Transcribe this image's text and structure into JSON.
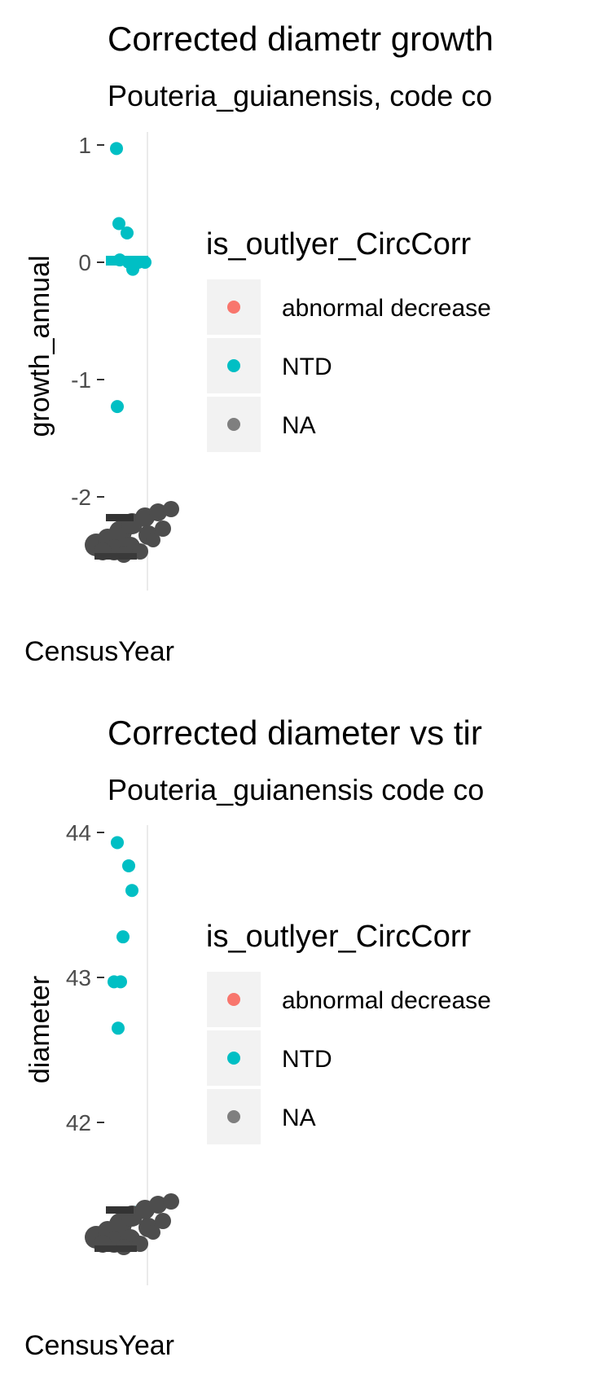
{
  "colors": {
    "abnormal_decrease": "#F8766D",
    "ntd": "#00BFC4",
    "na": "#7F7F7F",
    "tick_label": "#4D4D4D",
    "tick_mark": "#333333",
    "grid": "#EBEBEB",
    "legend_key_bg": "#F2F2F2",
    "smudge": "#4D4D4D"
  },
  "chart_data": [
    {
      "type": "scatter",
      "title": "Corrected diametr growth",
      "subtitle": "Pouteria_guianensis, code co",
      "xlabel": "CensusYear",
      "ylabel": "growth_annual",
      "yticks": [
        1,
        0,
        -1,
        -2
      ],
      "ylim": [
        -2.6,
        1.1
      ],
      "legend": {
        "title": "is_outlyer_CircCorr",
        "entries": [
          "abnormal decrease",
          "NTD",
          "NA"
        ],
        "placement": "right"
      },
      "points": [
        {
          "y": 0.97,
          "group": "NTD"
        },
        {
          "y": 0.33,
          "group": "NTD"
        },
        {
          "y": 0.25,
          "group": "NTD"
        },
        {
          "y": 0.02,
          "group": "NTD"
        },
        {
          "y": 0.0,
          "group": "NTD"
        },
        {
          "y": 0.0,
          "group": "NTD"
        },
        {
          "y": 0.0,
          "group": "NTD"
        },
        {
          "y": -0.06,
          "group": "NTD"
        },
        {
          "y": -1.23,
          "group": "NTD"
        },
        {
          "y": -2.22,
          "group": "abnormal decrease"
        }
      ]
    },
    {
      "type": "scatter",
      "title": "Corrected diameter vs tir",
      "subtitle": "Pouteria_guianensis code co",
      "xlabel": "CensusYear",
      "ylabel": "diameter",
      "yticks": [
        44,
        43,
        42
      ],
      "ylim": [
        41.1,
        44.05
      ],
      "legend": {
        "title": "is_outlyer_CircCorr",
        "entries": [
          "abnormal decrease",
          "NTD",
          "NA"
        ],
        "placement": "right"
      },
      "points": [
        {
          "y": 43.93,
          "group": "NTD"
        },
        {
          "y": 43.77,
          "group": "NTD"
        },
        {
          "y": 43.6,
          "group": "NTD"
        },
        {
          "y": 43.28,
          "group": "NTD"
        },
        {
          "y": 42.97,
          "group": "NTD"
        },
        {
          "y": 42.97,
          "group": "NTD"
        },
        {
          "y": 42.65,
          "group": "NTD"
        },
        {
          "y": 41.38,
          "group": "NTD"
        },
        {
          "y": 41.38,
          "group": "NTD"
        }
      ]
    }
  ]
}
